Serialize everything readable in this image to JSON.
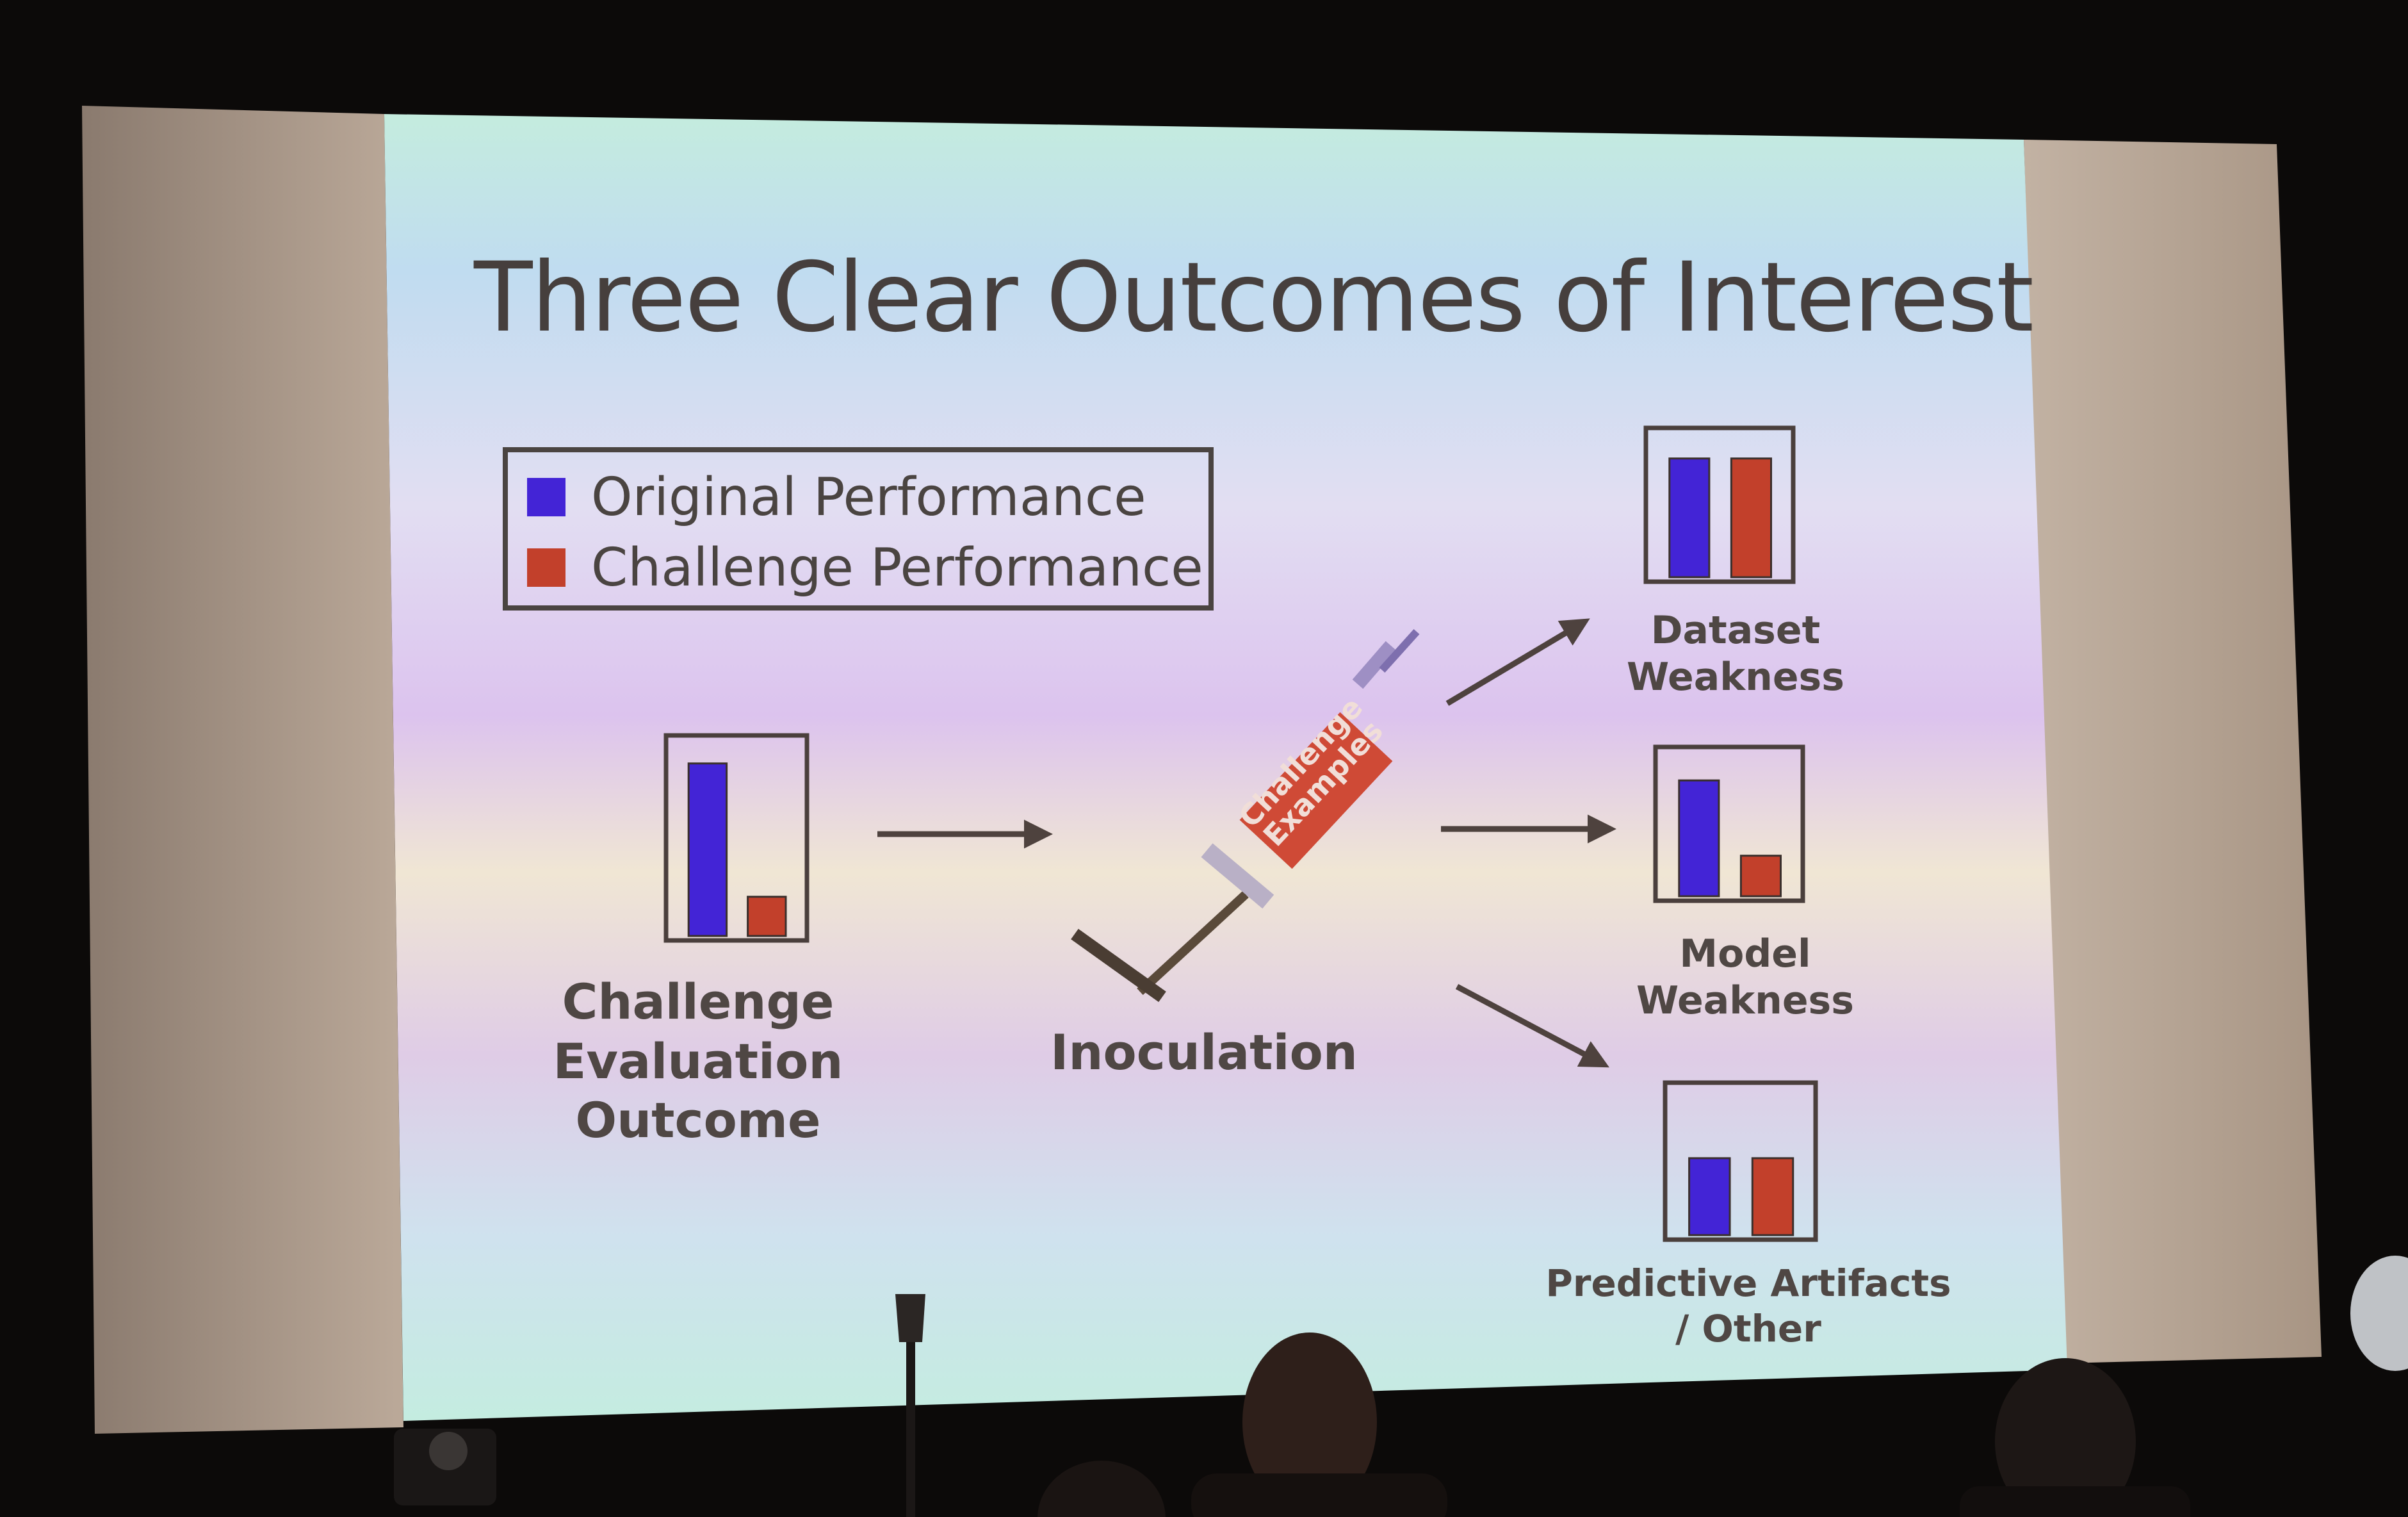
{
  "slide": {
    "title": "Three Clear Outcomes of Interest",
    "legend": {
      "original": {
        "label": "Original Performance",
        "color": "#4324d6"
      },
      "challenge": {
        "label": "Challenge Performance",
        "color": "#c2402b"
      }
    },
    "challenge_eval": {
      "label_lines": [
        "Challenge",
        "Evaluation",
        "Outcome"
      ],
      "original_level": 0.88,
      "challenge_level": 0.2
    },
    "inoculation": {
      "label": "Inoculation",
      "syringe_label_lines": [
        "Challenge",
        "Examples"
      ]
    },
    "outcomes": [
      {
        "label_lines": [
          "Dataset",
          "Weakness"
        ],
        "original_level": 0.82,
        "challenge_level": 0.82
      },
      {
        "label_lines": [
          "Model",
          "Weakness"
        ],
        "original_level": 0.8,
        "challenge_level": 0.28
      },
      {
        "label_lines": [
          "Predictive Artifacts",
          "/ Other"
        ],
        "original_level": 0.52,
        "challenge_level": 0.52
      }
    ]
  }
}
